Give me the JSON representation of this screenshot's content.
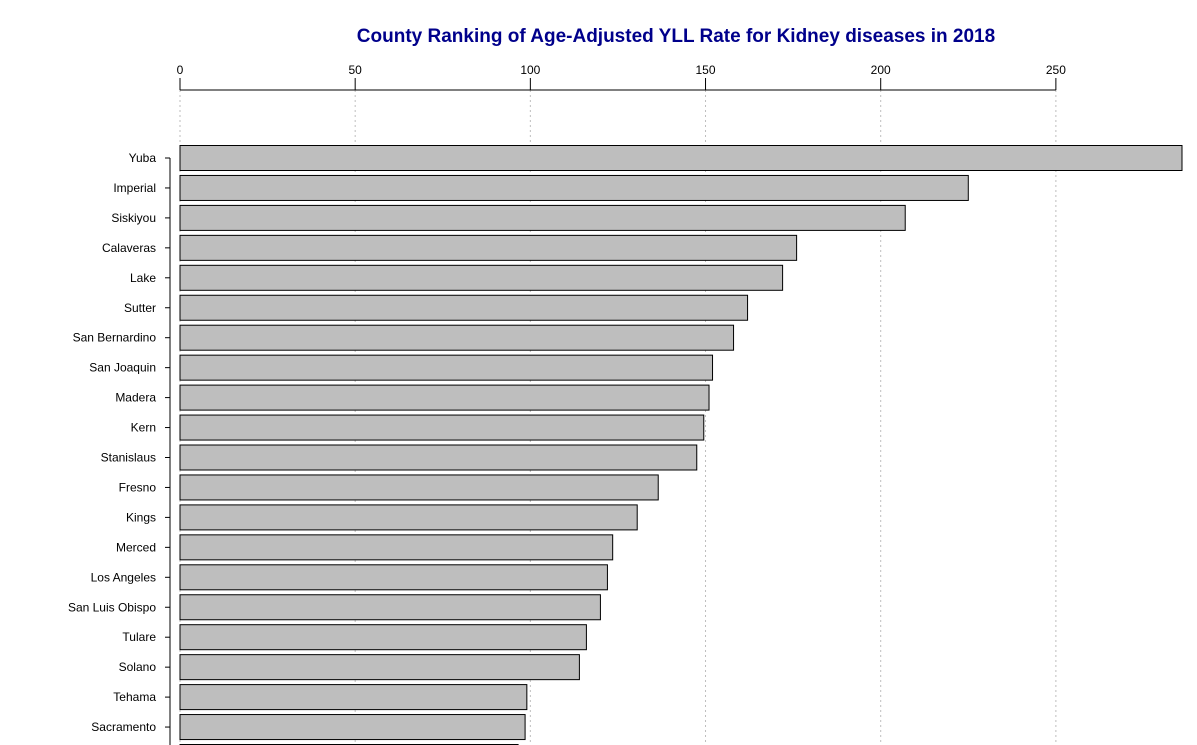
{
  "chart_data": {
    "type": "bar",
    "orientation": "horizontal",
    "title": "County Ranking of Age-Adjusted YLL Rate for Kidney diseases in 2018",
    "xlabel": "",
    "ylabel": "",
    "axis_position": "top",
    "grid": true,
    "xlim": [
      0,
      286
    ],
    "ticks": [
      0,
      50,
      100,
      150,
      200,
      250
    ],
    "categories": [
      "Yuba",
      "Imperial",
      "Siskiyou",
      "Calaveras",
      "Lake",
      "Sutter",
      "San Bernardino",
      "San Joaquin",
      "Madera",
      "Kern",
      "Stanislaus",
      "Fresno",
      "Kings",
      "Merced",
      "Los Angeles",
      "San Luis Obispo",
      "Tulare",
      "Solano",
      "Tehama",
      "Sacramento",
      ""
    ],
    "values": [
      286,
      225,
      207,
      176,
      172,
      162,
      158,
      152,
      151,
      149.5,
      147.5,
      136.5,
      130.5,
      123.5,
      122,
      120,
      116,
      114,
      99,
      98.5,
      96.5
    ],
    "colors": {
      "title": "#00008B",
      "bar_fill": "#BEBEBE",
      "bar_stroke": "#000000",
      "grid": "#BEBEBE"
    }
  }
}
